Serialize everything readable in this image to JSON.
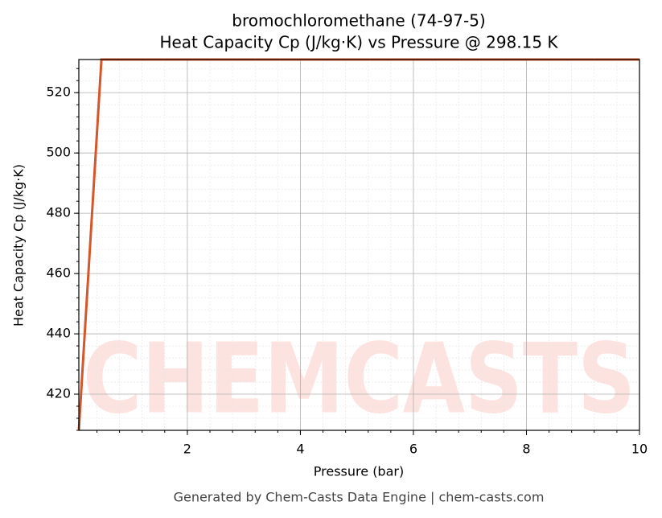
{
  "chart_data": {
    "type": "line",
    "title": "bromochloromethane (74-97-5)",
    "subtitle": "Heat Capacity Cp (J/kg·K) vs Pressure @ 298.15 K",
    "x_label": "Pressure (bar)",
    "y_label": "Heat Capacity Cp (J/kg·K)",
    "watermark": "CHEMCASTS",
    "footer": "Generated by Chem-Casts Data Engine | chem-casts.com",
    "x": [
      0.08,
      0.48,
      10
    ],
    "series": [
      {
        "name": "Cp",
        "color": "#d4562a",
        "values": [
          408,
          531,
          531
        ]
      }
    ],
    "xlim": [
      0.08,
      10
    ],
    "xticks": [
      2,
      4,
      6,
      8,
      10
    ],
    "ylim": [
      408,
      531
    ],
    "yticks": [
      420,
      440,
      460,
      480,
      500,
      520
    ],
    "grid": true,
    "minor_grid": true
  }
}
